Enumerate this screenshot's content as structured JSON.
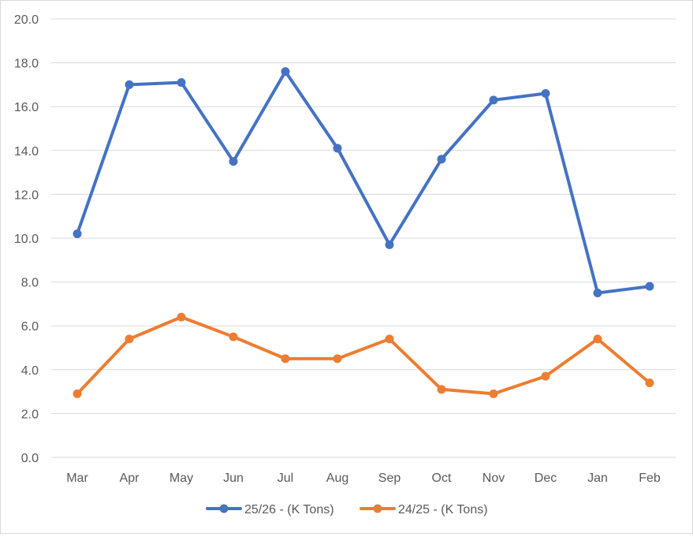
{
  "chart_data": {
    "type": "line",
    "title": "",
    "xlabel": "",
    "ylabel": "",
    "categories": [
      "Mar",
      "Apr",
      "May",
      "Jun",
      "Jul",
      "Aug",
      "Sep",
      "Oct",
      "Nov",
      "Dec",
      "Jan",
      "Feb"
    ],
    "ylim": [
      0,
      20
    ],
    "yticks": [
      "0.0",
      "2.0",
      "4.0",
      "6.0",
      "8.0",
      "10.0",
      "12.0",
      "14.0",
      "16.0",
      "18.0",
      "20.0"
    ],
    "grid": "horizontal",
    "legend_position": "bottom",
    "series": [
      {
        "name": "25/26 - (K Tons)",
        "color": "#4472C4",
        "marker": "circle",
        "values": [
          10.2,
          17.0,
          17.1,
          13.5,
          17.6,
          14.1,
          9.7,
          13.6,
          16.3,
          16.6,
          7.5,
          7.8
        ]
      },
      {
        "name": "24/25 - (K Tons)",
        "color": "#ED7D31",
        "marker": "circle",
        "values": [
          2.9,
          5.4,
          6.4,
          5.5,
          4.5,
          4.5,
          5.4,
          3.1,
          2.9,
          3.7,
          5.4,
          3.4
        ]
      }
    ]
  }
}
